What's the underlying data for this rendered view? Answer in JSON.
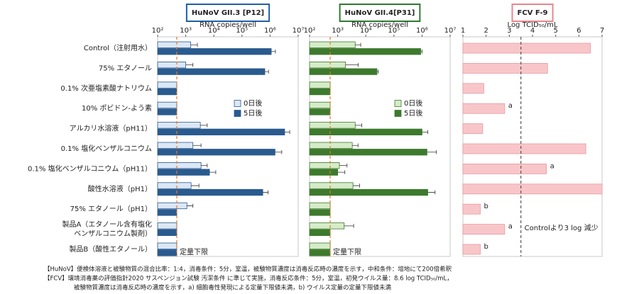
{
  "chart_data": [
    {
      "type": "bar",
      "orientation": "horizontal",
      "title": "HuNoV GII.3 [P12]",
      "title_color": "#1f5fa8",
      "xlabel": "RNA copies/well",
      "xscale": "log",
      "categories": [
        "Control（注射用水）",
        "75% エタノール",
        "0.1% 次亜塩素酸ナトリウム",
        "10% ポビドン-よう素",
        "アルカリ水溶液（pH11）",
        "0.1% 塩化ベンザルコニウム",
        "0.1% 塩化ベンザルコニウム（pH11）",
        "酸性水溶液（pH1）",
        "75% エタノール（pH1）",
        "製品A（エタノール含有塩化\nベンザルコニウム製剤）",
        "製品B（酸性エタノール）"
      ],
      "xlim": [
        100,
        10000000
      ],
      "xticks": [
        {
          "value": 100,
          "label": "10²"
        },
        {
          "value": 1000,
          "label": "10³"
        },
        {
          "value": 10000,
          "label": "10⁴"
        },
        {
          "value": 100000,
          "label": "10⁵"
        },
        {
          "value": 1000000,
          "label": "10⁶"
        },
        {
          "value": 10000000,
          "label": "10⁷"
        }
      ],
      "series": [
        {
          "name": "0日後",
          "color": "#dce7f5",
          "edge": "#2a5b8f",
          "values": [
            1500,
            1000,
            480,
            480,
            3300,
            1800,
            3500,
            1550,
            1100,
            480,
            480
          ],
          "errors": [
            1100,
            800,
            null,
            null,
            2500,
            1700,
            2300,
            1400,
            700,
            null,
            null
          ]
        },
        {
          "name": "5日後",
          "color": "#2a5b8f",
          "edge": "#2a5b8f",
          "values": [
            1100000,
            650000,
            480,
            480,
            3300000,
            1500000,
            7000,
            550000,
            480,
            480,
            480
          ],
          "errors": [
            450000,
            230000,
            null,
            null,
            1700000,
            1100000,
            4700,
            300000,
            null,
            null,
            null
          ]
        }
      ],
      "reference_line": {
        "value": 480,
        "label": "定量下限",
        "color": "#e8782a"
      }
    },
    {
      "type": "bar",
      "orientation": "horizontal",
      "title": "HuNoV GII.4[P31]",
      "title_color": "#2e7a2e",
      "xlabel": "RNA copies/well",
      "xscale": "log",
      "xlim": [
        100,
        10000000
      ],
      "xticks": [
        {
          "value": 100,
          "label": "10²"
        },
        {
          "value": 1000,
          "label": "10³"
        },
        {
          "value": 10000,
          "label": "10⁴"
        },
        {
          "value": 100000,
          "label": "10⁵"
        },
        {
          "value": 1000000,
          "label": "10⁶"
        },
        {
          "value": 10000000,
          "label": "10⁷"
        }
      ],
      "series": [
        {
          "name": "0日後",
          "color": "#d6ecc9",
          "edge": "#3d7a2d",
          "values": [
            4200,
            1900,
            540,
            540,
            4200,
            3300,
            1150,
            3500,
            540,
            1700,
            540
          ],
          "errors": [
            2400,
            3500,
            null,
            null,
            3000,
            2000,
            1000,
            2500,
            null,
            2000,
            null
          ]
        },
        {
          "name": "5日後",
          "color": "#3d7a2d",
          "edge": "#3d7a2d",
          "values": [
            900000,
            25000,
            540,
            540,
            1000000,
            1500000,
            1000,
            1600000,
            540,
            540,
            540
          ],
          "errors": [
            100000,
            3000,
            null,
            null,
            600000,
            1700000,
            800,
            1300000,
            null,
            null,
            null
          ]
        }
      ],
      "reference_line": {
        "value": 540,
        "label": "定量下限",
        "color": "#e8782a"
      }
    },
    {
      "type": "bar",
      "orientation": "horizontal",
      "title": "FCV F-9",
      "title_color": "#e8868c",
      "xlabel": "Log TCID₅₀/mL",
      "xscale": "linear",
      "xlim": [
        1,
        7
      ],
      "xticks": [
        1,
        2,
        3,
        4,
        5,
        6,
        7
      ],
      "series": [
        {
          "color": "#f8c6c9",
          "edge": "#e89aa0",
          "values": [
            6.5,
            4.65,
            1.9,
            2.8,
            1.85,
            6.3,
            4.6,
            7,
            1.75,
            2.8,
            1.75
          ],
          "notes": [
            null,
            null,
            null,
            "a",
            null,
            null,
            "a",
            null,
            "b",
            "a",
            "b"
          ]
        }
      ],
      "reference_line": {
        "value": 3.5,
        "label": "Controlより3 log 減少",
        "color": "#555555"
      }
    }
  ],
  "footnotes": [
    "【HuNoV】便検体溶液と被験物質の混合比率：1:4，消毒条件：5分，室温，被験物質濃度は消毒反応時の濃度を示す，中和条件：培地にて200倍希釈",
    "【FCV】環境消毒薬の評価指針2020 サスペンジョン試験 汚潔条件 に準じて実施，消毒反応条件：5分，室温，初発ウイルス量：8.6 log TCID₅₀/mL，",
    "被験物質濃度は消毒反応時の濃度を示す，a) 細胞毒性発現による定量下限値未満，b) ウイルス定量の定量下限値未満"
  ]
}
